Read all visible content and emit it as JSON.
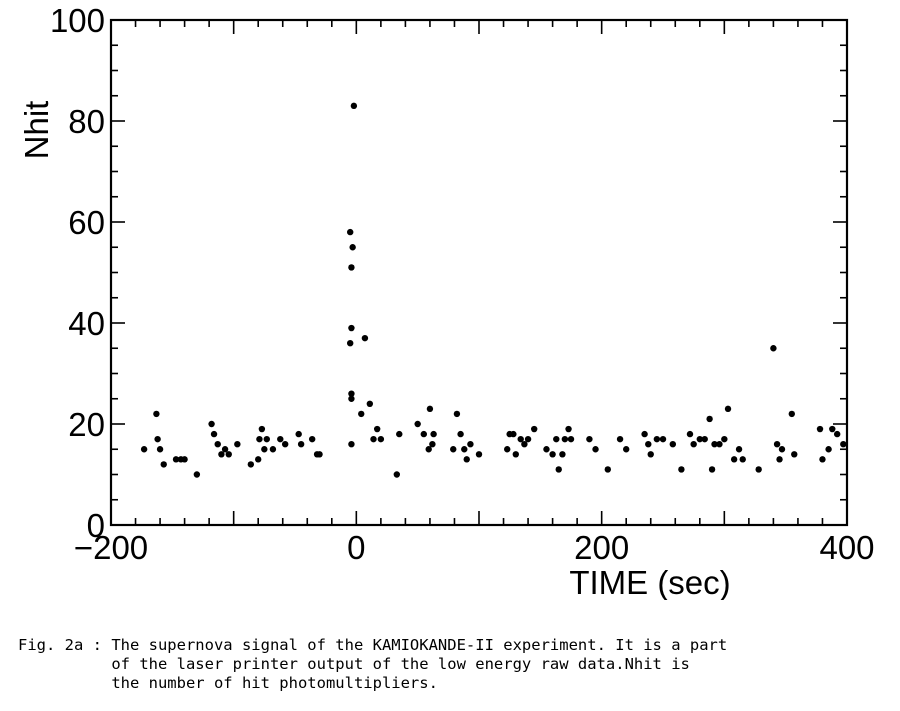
{
  "chart_data": {
    "type": "scatter",
    "xlabel": "TIME (sec)",
    "ylabel": "Nhit",
    "xlim": [
      -200,
      400
    ],
    "ylim": [
      0,
      100
    ],
    "xticks": [
      -200,
      0,
      200,
      400
    ],
    "yticks": [
      0,
      20,
      40,
      60,
      80,
      100
    ],
    "xtick_labels": [
      "−200",
      "0",
      "200",
      "400"
    ],
    "ytick_labels": [
      "0",
      "20",
      "40",
      "60",
      "80",
      "100"
    ],
    "grid": false,
    "points": [
      {
        "x": -173,
        "y": 15
      },
      {
        "x": -163,
        "y": 22
      },
      {
        "x": -162,
        "y": 17
      },
      {
        "x": -160,
        "y": 15
      },
      {
        "x": -157,
        "y": 12
      },
      {
        "x": -147,
        "y": 13
      },
      {
        "x": -143,
        "y": 13
      },
      {
        "x": -140,
        "y": 13
      },
      {
        "x": -130,
        "y": 10
      },
      {
        "x": -118,
        "y": 20
      },
      {
        "x": -116,
        "y": 18
      },
      {
        "x": -113,
        "y": 16
      },
      {
        "x": -110,
        "y": 14
      },
      {
        "x": -107,
        "y": 15
      },
      {
        "x": -104,
        "y": 14
      },
      {
        "x": -97,
        "y": 16
      },
      {
        "x": -86,
        "y": 12
      },
      {
        "x": -80,
        "y": 13
      },
      {
        "x": -79,
        "y": 17
      },
      {
        "x": -77,
        "y": 19
      },
      {
        "x": -75,
        "y": 15
      },
      {
        "x": -73,
        "y": 17
      },
      {
        "x": -68,
        "y": 15
      },
      {
        "x": -62,
        "y": 17
      },
      {
        "x": -58,
        "y": 16
      },
      {
        "x": -47,
        "y": 18
      },
      {
        "x": -45,
        "y": 16
      },
      {
        "x": -36,
        "y": 17
      },
      {
        "x": -32,
        "y": 14
      },
      {
        "x": -30,
        "y": 14
      },
      {
        "x": -4,
        "y": 16
      },
      {
        "x": -4,
        "y": 25
      },
      {
        "x": -4,
        "y": 26
      },
      {
        "x": -5,
        "y": 36
      },
      {
        "x": -4,
        "y": 39
      },
      {
        "x": -4,
        "y": 51
      },
      {
        "x": -3,
        "y": 55
      },
      {
        "x": -5,
        "y": 58
      },
      {
        "x": -2,
        "y": 83
      },
      {
        "x": 4,
        "y": 22
      },
      {
        "x": 7,
        "y": 37
      },
      {
        "x": 11,
        "y": 24
      },
      {
        "x": 14,
        "y": 17
      },
      {
        "x": 17,
        "y": 19
      },
      {
        "x": 20,
        "y": 17
      },
      {
        "x": 33,
        "y": 10
      },
      {
        "x": 35,
        "y": 18
      },
      {
        "x": 50,
        "y": 20
      },
      {
        "x": 55,
        "y": 18
      },
      {
        "x": 59,
        "y": 15
      },
      {
        "x": 60,
        "y": 23
      },
      {
        "x": 62,
        "y": 16
      },
      {
        "x": 63,
        "y": 18
      },
      {
        "x": 79,
        "y": 15
      },
      {
        "x": 82,
        "y": 22
      },
      {
        "x": 85,
        "y": 18
      },
      {
        "x": 88,
        "y": 15
      },
      {
        "x": 90,
        "y": 13
      },
      {
        "x": 93,
        "y": 16
      },
      {
        "x": 100,
        "y": 14
      },
      {
        "x": 123,
        "y": 15
      },
      {
        "x": 125,
        "y": 18
      },
      {
        "x": 128,
        "y": 18
      },
      {
        "x": 130,
        "y": 14
      },
      {
        "x": 134,
        "y": 17
      },
      {
        "x": 137,
        "y": 16
      },
      {
        "x": 140,
        "y": 17
      },
      {
        "x": 145,
        "y": 19
      },
      {
        "x": 155,
        "y": 15
      },
      {
        "x": 160,
        "y": 14
      },
      {
        "x": 163,
        "y": 17
      },
      {
        "x": 165,
        "y": 11
      },
      {
        "x": 168,
        "y": 14
      },
      {
        "x": 170,
        "y": 17
      },
      {
        "x": 173,
        "y": 19
      },
      {
        "x": 175,
        "y": 17
      },
      {
        "x": 190,
        "y": 17
      },
      {
        "x": 195,
        "y": 15
      },
      {
        "x": 205,
        "y": 11
      },
      {
        "x": 215,
        "y": 17
      },
      {
        "x": 220,
        "y": 15
      },
      {
        "x": 235,
        "y": 18
      },
      {
        "x": 238,
        "y": 16
      },
      {
        "x": 240,
        "y": 14
      },
      {
        "x": 245,
        "y": 17
      },
      {
        "x": 250,
        "y": 17
      },
      {
        "x": 258,
        "y": 16
      },
      {
        "x": 265,
        "y": 11
      },
      {
        "x": 272,
        "y": 18
      },
      {
        "x": 275,
        "y": 16
      },
      {
        "x": 280,
        "y": 17
      },
      {
        "x": 284,
        "y": 17
      },
      {
        "x": 288,
        "y": 21
      },
      {
        "x": 290,
        "y": 11
      },
      {
        "x": 292,
        "y": 16
      },
      {
        "x": 296,
        "y": 16
      },
      {
        "x": 300,
        "y": 17
      },
      {
        "x": 303,
        "y": 23
      },
      {
        "x": 308,
        "y": 13
      },
      {
        "x": 312,
        "y": 15
      },
      {
        "x": 315,
        "y": 13
      },
      {
        "x": 328,
        "y": 11
      },
      {
        "x": 340,
        "y": 35
      },
      {
        "x": 343,
        "y": 16
      },
      {
        "x": 345,
        "y": 13
      },
      {
        "x": 347,
        "y": 15
      },
      {
        "x": 355,
        "y": 22
      },
      {
        "x": 357,
        "y": 14
      },
      {
        "x": 378,
        "y": 19
      },
      {
        "x": 380,
        "y": 13
      },
      {
        "x": 385,
        "y": 15
      },
      {
        "x": 388,
        "y": 19
      },
      {
        "x": 392,
        "y": 18
      },
      {
        "x": 397,
        "y": 16
      }
    ]
  },
  "caption": {
    "line1": "Fig. 2a : The supernova signal of the KAMIOKANDE-II experiment. It is a part",
    "line2": "          of the laser printer output of the low energy raw data.Nhit is",
    "line3": "          the number of hit photomultipliers."
  }
}
